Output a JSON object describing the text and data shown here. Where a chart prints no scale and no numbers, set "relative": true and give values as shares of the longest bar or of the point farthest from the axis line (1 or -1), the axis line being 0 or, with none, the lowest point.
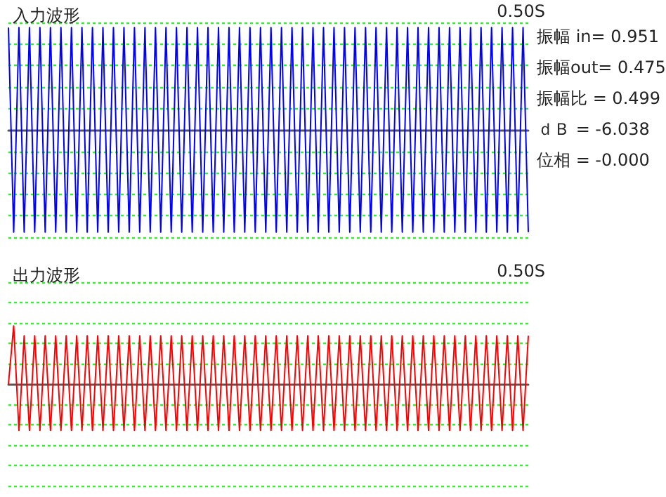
{
  "chart_data": [
    {
      "type": "line",
      "title": "入力波形",
      "relative": true,
      "ref_lines": [
        {
          "axis": "y",
          "value": 1.05,
          "color": "#33ee33",
          "line_style": "dotted"
        },
        {
          "axis": "y",
          "value": 0.84,
          "color": "#33ee33",
          "line_style": "dotted"
        },
        {
          "axis": "y",
          "value": 0.63,
          "color": "#33ee33",
          "line_style": "dotted"
        },
        {
          "axis": "y",
          "value": 0.42,
          "color": "#33ee33",
          "line_style": "dotted"
        },
        {
          "axis": "y",
          "value": 0.21,
          "color": "#33ee33",
          "line_style": "dotted"
        },
        {
          "axis": "y",
          "value": -0.21,
          "color": "#33ee33",
          "line_style": "dotted"
        },
        {
          "axis": "y",
          "value": -0.42,
          "color": "#33ee33",
          "line_style": "dotted"
        },
        {
          "axis": "y",
          "value": -0.63,
          "color": "#33ee33",
          "line_style": "dotted"
        },
        {
          "axis": "y",
          "value": -0.84,
          "color": "#33ee33",
          "line_style": "dotted"
        },
        {
          "axis": "y",
          "value": -1.05,
          "color": "#33ee33",
          "line_style": "dotted"
        }
      ],
      "annotations": [
        "0.50S",
        "振幅 in= 0.951",
        "振幅out= 0.475",
        "振幅比 = 0.499",
        "ｄＢ = -6.038",
        "位相 = -0.000"
      ],
      "categories": [
        null,
        null,
        null,
        null,
        null,
        null,
        null,
        null,
        null,
        null,
        null,
        null,
        null,
        null,
        null,
        null,
        null,
        null,
        null,
        null,
        null,
        null,
        null,
        null,
        null,
        null,
        null,
        null,
        null,
        null,
        null,
        null,
        null,
        null,
        null,
        null,
        null,
        null,
        null,
        null,
        null,
        null,
        null,
        null,
        null,
        null,
        null,
        null,
        null,
        null,
        null,
        null,
        null,
        null,
        null,
        null,
        null,
        null,
        null,
        null,
        null,
        null,
        null,
        null,
        null,
        null,
        null,
        null,
        null,
        null,
        null,
        null,
        null,
        null,
        null,
        null,
        null,
        null,
        null,
        null,
        null,
        null,
        null,
        null,
        null,
        null,
        null,
        null,
        null,
        null,
        null,
        null,
        null,
        null,
        null,
        null,
        null,
        null,
        null,
        null
      ],
      "series": [
        {
          "color": "#0000ff",
          "values": [
            1,
            -1,
            1,
            -1,
            1,
            -1,
            1,
            -1,
            1,
            -1,
            1,
            -1,
            1,
            -1,
            1,
            -1,
            1,
            -1,
            1,
            -1,
            1,
            -1,
            1,
            -1,
            1,
            -1,
            1,
            -1,
            1,
            -1,
            1,
            -1,
            1,
            -1,
            1,
            -1,
            1,
            -1,
            1,
            -1,
            1,
            -1,
            1,
            -1,
            1,
            -1,
            1,
            -1,
            1,
            -1,
            1,
            -1,
            1,
            -1,
            1,
            -1,
            1,
            -1,
            1,
            -1,
            1,
            -1,
            1,
            -1,
            1,
            -1,
            1,
            -1,
            1,
            -1,
            1,
            -1,
            1,
            -1,
            1,
            -1,
            1,
            -1,
            1,
            -1,
            1,
            -1,
            1,
            -1,
            1,
            -1,
            1,
            -1,
            1,
            -1,
            1,
            -1,
            1,
            -1,
            1,
            -1,
            1,
            -1,
            1,
            -1
          ]
        }
      ]
    },
    {
      "type": "line",
      "title": "出力波形",
      "relative": true,
      "ref_lines": [
        {
          "axis": "y",
          "value": 1.75,
          "color": "#33ee33",
          "line_style": "dotted"
        },
        {
          "axis": "y",
          "value": 1.4,
          "color": "#33ee33",
          "line_style": "dotted"
        },
        {
          "axis": "y",
          "value": 1.05,
          "color": "#33ee33",
          "line_style": "dotted"
        },
        {
          "axis": "y",
          "value": 0.7,
          "color": "#33ee33",
          "line_style": "dotted"
        },
        {
          "axis": "y",
          "value": 0.35,
          "color": "#33ee33",
          "line_style": "dotted"
        },
        {
          "axis": "y",
          "value": -0.35,
          "color": "#33ee33",
          "line_style": "dotted"
        },
        {
          "axis": "y",
          "value": -0.7,
          "color": "#33ee33",
          "line_style": "dotted"
        },
        {
          "axis": "y",
          "value": -1.05,
          "color": "#33ee33",
          "line_style": "dotted"
        },
        {
          "axis": "y",
          "value": -1.4,
          "color": "#33ee33",
          "line_style": "dotted"
        },
        {
          "axis": "y",
          "value": -1.75,
          "color": "#33ee33",
          "line_style": "dotted"
        }
      ],
      "annotations": [
        "0.50S"
      ],
      "categories": [
        null,
        null,
        null,
        null,
        null,
        null,
        null,
        null,
        null,
        null,
        null,
        null,
        null,
        null,
        null,
        null,
        null,
        null,
        null,
        null,
        null,
        null,
        null,
        null,
        null,
        null,
        null,
        null,
        null,
        null,
        null,
        null,
        null,
        null,
        null,
        null,
        null,
        null,
        null,
        null,
        null,
        null,
        null,
        null,
        null,
        null,
        null,
        null,
        null,
        null,
        null,
        null,
        null,
        null,
        null,
        null,
        null,
        null,
        null,
        null,
        null,
        null,
        null,
        null,
        null,
        null,
        null,
        null,
        null,
        null,
        null,
        null,
        null,
        null,
        null,
        null,
        null,
        null,
        null,
        null,
        null,
        null,
        null,
        null,
        null,
        null,
        null,
        null,
        null,
        null,
        null,
        null,
        null,
        null,
        null,
        null,
        null,
        null,
        null,
        null
      ],
      "series": [
        {
          "color": "#ff0000",
          "values": [
            0,
            1,
            -0.8,
            0.83,
            -0.8,
            0.83,
            -0.8,
            0.83,
            -0.8,
            0.83,
            -0.8,
            0.83,
            -0.8,
            0.83,
            -0.8,
            0.83,
            -0.8,
            0.83,
            -0.8,
            0.83,
            -0.8,
            0.83,
            -0.8,
            0.83,
            -0.8,
            0.83,
            -0.8,
            0.83,
            -0.8,
            0.83,
            -0.8,
            0.83,
            -0.8,
            0.83,
            -0.8,
            0.83,
            -0.8,
            0.83,
            -0.8,
            0.83,
            -0.8,
            0.83,
            -0.8,
            0.83,
            -0.8,
            0.83,
            -0.8,
            0.83,
            -0.8,
            0.83,
            -0.8,
            0.83,
            -0.8,
            0.83,
            -0.8,
            0.83,
            -0.8,
            0.83,
            -0.8,
            0.83,
            -0.8,
            0.83,
            -0.8,
            0.83,
            -0.8,
            0.83,
            -0.8,
            0.83,
            -0.8,
            0.83,
            -0.8,
            0.83,
            -0.8,
            0.83,
            -0.8,
            0.83,
            -0.8,
            0.83,
            -0.8,
            0.83,
            -0.8,
            0.83,
            -0.8,
            0.83,
            -0.8,
            0.83,
            -0.8,
            0.83,
            -0.8,
            0.83,
            -0.8,
            0.83,
            -0.8,
            0.83,
            -0.8,
            0.83,
            -0.8,
            0.83,
            -0.8,
            0.83
          ]
        }
      ]
    }
  ]
}
